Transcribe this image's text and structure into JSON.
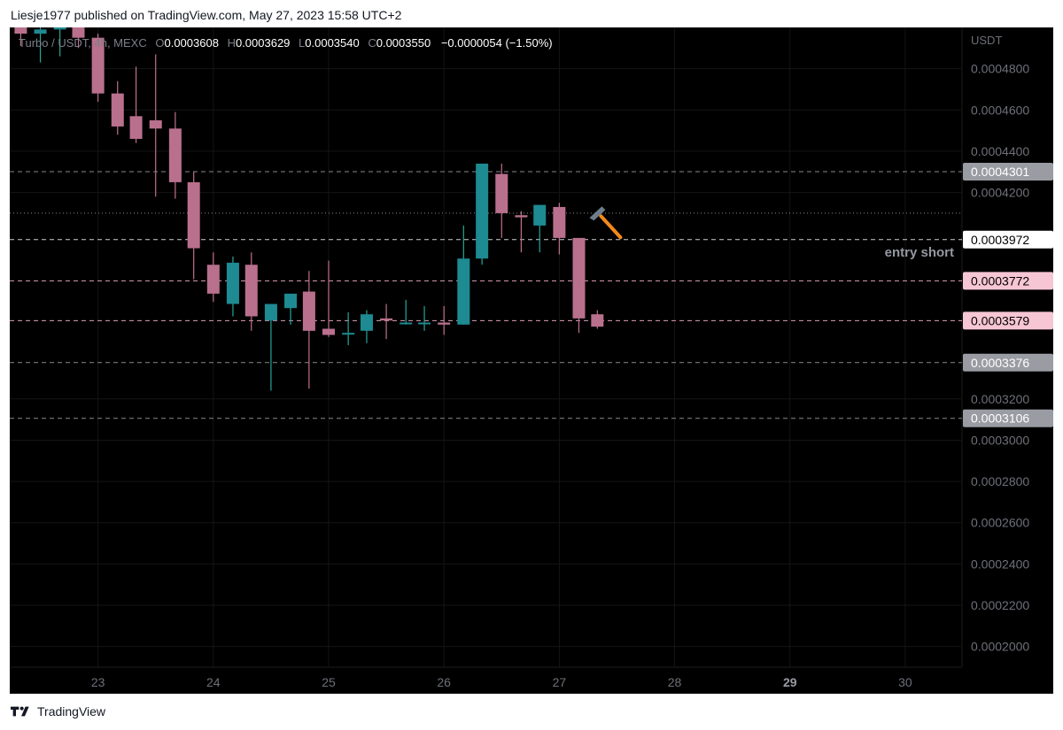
{
  "header": {
    "published_line": "Liesje1977 published on TradingView.com, May 27, 2023 15:58 UTC+2"
  },
  "legend": {
    "symbol": "Turbo / USDT, 4h, MEXC",
    "o_label": "O",
    "o_value": "0.0003608",
    "h_label": "H",
    "h_value": "0.0003629",
    "l_label": "L",
    "l_value": "0.0003540",
    "c_label": "C",
    "c_value": "0.0003550",
    "change": "−0.0000054 (−1.50%)"
  },
  "footer": {
    "brand": "TradingView"
  },
  "colors": {
    "background": "#000000",
    "up": "#26a69a",
    "up_fill": "#1e8a92",
    "down": "#c07090",
    "down_fill": "#b9708c",
    "grid": "#151515",
    "text_axis": "#6e7079",
    "hline_white": "#d0d0d0",
    "hline_grey": "#8a8a8a",
    "hline_pink": "#e0a0b8",
    "hammer_handle": "#f5891a",
    "hammer_head": "#6f7d8a"
  },
  "chart_data": {
    "type": "candlestick",
    "symbol": "Turbo / USDT",
    "interval": "4h",
    "exchange": "MEXC",
    "y_axis_label": "USDT",
    "ylim": [
      0.00019,
      0.0005
    ],
    "y_ticks": [
      "0.0004800",
      "0.0004600",
      "0.0004400",
      "0.0004200",
      "0.0003200",
      "0.0003000",
      "0.0002800",
      "0.0002600",
      "0.0002400",
      "0.0002200",
      "0.0002000"
    ],
    "x_ticks": [
      {
        "label": "23",
        "x": 23.0,
        "bold": false
      },
      {
        "label": "24",
        "x": 24.0,
        "bold": false
      },
      {
        "label": "25",
        "x": 25.0,
        "bold": false
      },
      {
        "label": "26",
        "x": 26.0,
        "bold": false
      },
      {
        "label": "27",
        "x": 27.0,
        "bold": false
      },
      {
        "label": "28",
        "x": 28.0,
        "bold": false
      },
      {
        "label": "29",
        "x": 29.0,
        "bold": true
      },
      {
        "label": "30",
        "x": 30.0,
        "bold": false
      }
    ],
    "xlim": [
      22.25,
      30.5
    ],
    "candles": [
      {
        "x": 22.17,
        "o": 0.000518,
        "h": 0.000528,
        "l": 0.000495,
        "c": 0.000505
      },
      {
        "x": 22.33,
        "o": 0.000505,
        "h": 0.000512,
        "l": 0.000491,
        "c": 0.000497
      },
      {
        "x": 22.5,
        "o": 0.000497,
        "h": 0.00051,
        "l": 0.000483,
        "c": 0.000499
      },
      {
        "x": 22.67,
        "o": 0.000499,
        "h": 0.00051,
        "l": 0.000486,
        "c": 0.000502
      },
      {
        "x": 22.83,
        "o": 0.000503,
        "h": 0.000508,
        "l": 0.00049,
        "c": 0.000495
      },
      {
        "x": 23.0,
        "o": 0.000495,
        "h": 0.000497,
        "l": 0.000464,
        "c": 0.000468
      },
      {
        "x": 23.17,
        "o": 0.000468,
        "h": 0.000474,
        "l": 0.000448,
        "c": 0.000452
      },
      {
        "x": 23.33,
        "o": 0.000457,
        "h": 0.000481,
        "l": 0.000444,
        "c": 0.000446
      },
      {
        "x": 23.5,
        "o": 0.000455,
        "h": 0.000487,
        "l": 0.000418,
        "c": 0.000451
      },
      {
        "x": 23.67,
        "o": 0.000451,
        "h": 0.000459,
        "l": 0.000417,
        "c": 0.000425
      },
      {
        "x": 23.83,
        "o": 0.000425,
        "h": 0.00043,
        "l": 0.000378,
        "c": 0.000393
      },
      {
        "x": 24.0,
        "o": 0.000385,
        "h": 0.000391,
        "l": 0.000367,
        "c": 0.000371
      },
      {
        "x": 24.17,
        "o": 0.000366,
        "h": 0.000389,
        "l": 0.00036,
        "c": 0.000386
      },
      {
        "x": 24.33,
        "o": 0.000385,
        "h": 0.000391,
        "l": 0.000353,
        "c": 0.00036
      },
      {
        "x": 24.5,
        "o": 0.000358,
        "h": 0.000366,
        "l": 0.000324,
        "c": 0.000366
      },
      {
        "x": 24.67,
        "o": 0.000364,
        "h": 0.000369,
        "l": 0.000356,
        "c": 0.000371
      },
      {
        "x": 24.83,
        "o": 0.000372,
        "h": 0.000382,
        "l": 0.000325,
        "c": 0.000353
      },
      {
        "x": 25.0,
        "o": 0.000354,
        "h": 0.000387,
        "l": 0.00035,
        "c": 0.000351
      },
      {
        "x": 25.17,
        "o": 0.000352,
        "h": 0.000362,
        "l": 0.000346,
        "c": 0.000352
      },
      {
        "x": 25.33,
        "o": 0.000353,
        "h": 0.000363,
        "l": 0.000347,
        "c": 0.000361
      },
      {
        "x": 25.5,
        "o": 0.000359,
        "h": 0.000366,
        "l": 0.000349,
        "c": 0.000358
      },
      {
        "x": 25.67,
        "o": 0.000357,
        "h": 0.000368,
        "l": 0.000356,
        "c": 0.000357
      },
      {
        "x": 25.83,
        "o": 0.000357,
        "h": 0.000365,
        "l": 0.000353,
        "c": 0.000357
      },
      {
        "x": 26.0,
        "o": 0.000357,
        "h": 0.000365,
        "l": 0.000351,
        "c": 0.000356
      },
      {
        "x": 26.17,
        "o": 0.000356,
        "h": 0.000404,
        "l": 0.000356,
        "c": 0.000388
      },
      {
        "x": 26.33,
        "o": 0.000388,
        "h": 0.000434,
        "l": 0.000385,
        "c": 0.000434
      },
      {
        "x": 26.5,
        "o": 0.000429,
        "h": 0.000434,
        "l": 0.000398,
        "c": 0.00041
      },
      {
        "x": 26.67,
        "o": 0.000409,
        "h": 0.000411,
        "l": 0.000391,
        "c": 0.000408
      },
      {
        "x": 26.83,
        "o": 0.000404,
        "h": 0.000414,
        "l": 0.000391,
        "c": 0.000414
      },
      {
        "x": 27.0,
        "o": 0.000413,
        "h": 0.000415,
        "l": 0.00039,
        "c": 0.000398
      },
      {
        "x": 27.17,
        "o": 0.000398,
        "h": 0.000398,
        "l": 0.000352,
        "c": 0.000359
      },
      {
        "x": 27.33,
        "o": 0.000361,
        "h": 0.000363,
        "l": 0.000354,
        "c": 0.000355
      }
    ],
    "horizontal_lines": [
      {
        "value": 0.0004301,
        "label": "0.0004301",
        "style": "grey"
      },
      {
        "value": 0.00041,
        "label": "",
        "style": "dotted"
      },
      {
        "value": 0.0003972,
        "label": "0.0003972",
        "style": "white"
      },
      {
        "value": 0.0003772,
        "label": "0.0003772",
        "style": "pink"
      },
      {
        "value": 0.0003579,
        "label": "0.0003579",
        "style": "pink"
      },
      {
        "value": 0.0003376,
        "label": "0.0003376",
        "style": "grey"
      },
      {
        "value": 0.0003106,
        "label": "0.0003106",
        "style": "grey"
      }
    ],
    "annotations": [
      {
        "text": "entry short",
        "value": 0.000391
      }
    ],
    "hammer_marker": {
      "x": 27.3,
      "value": 0.000406
    }
  }
}
